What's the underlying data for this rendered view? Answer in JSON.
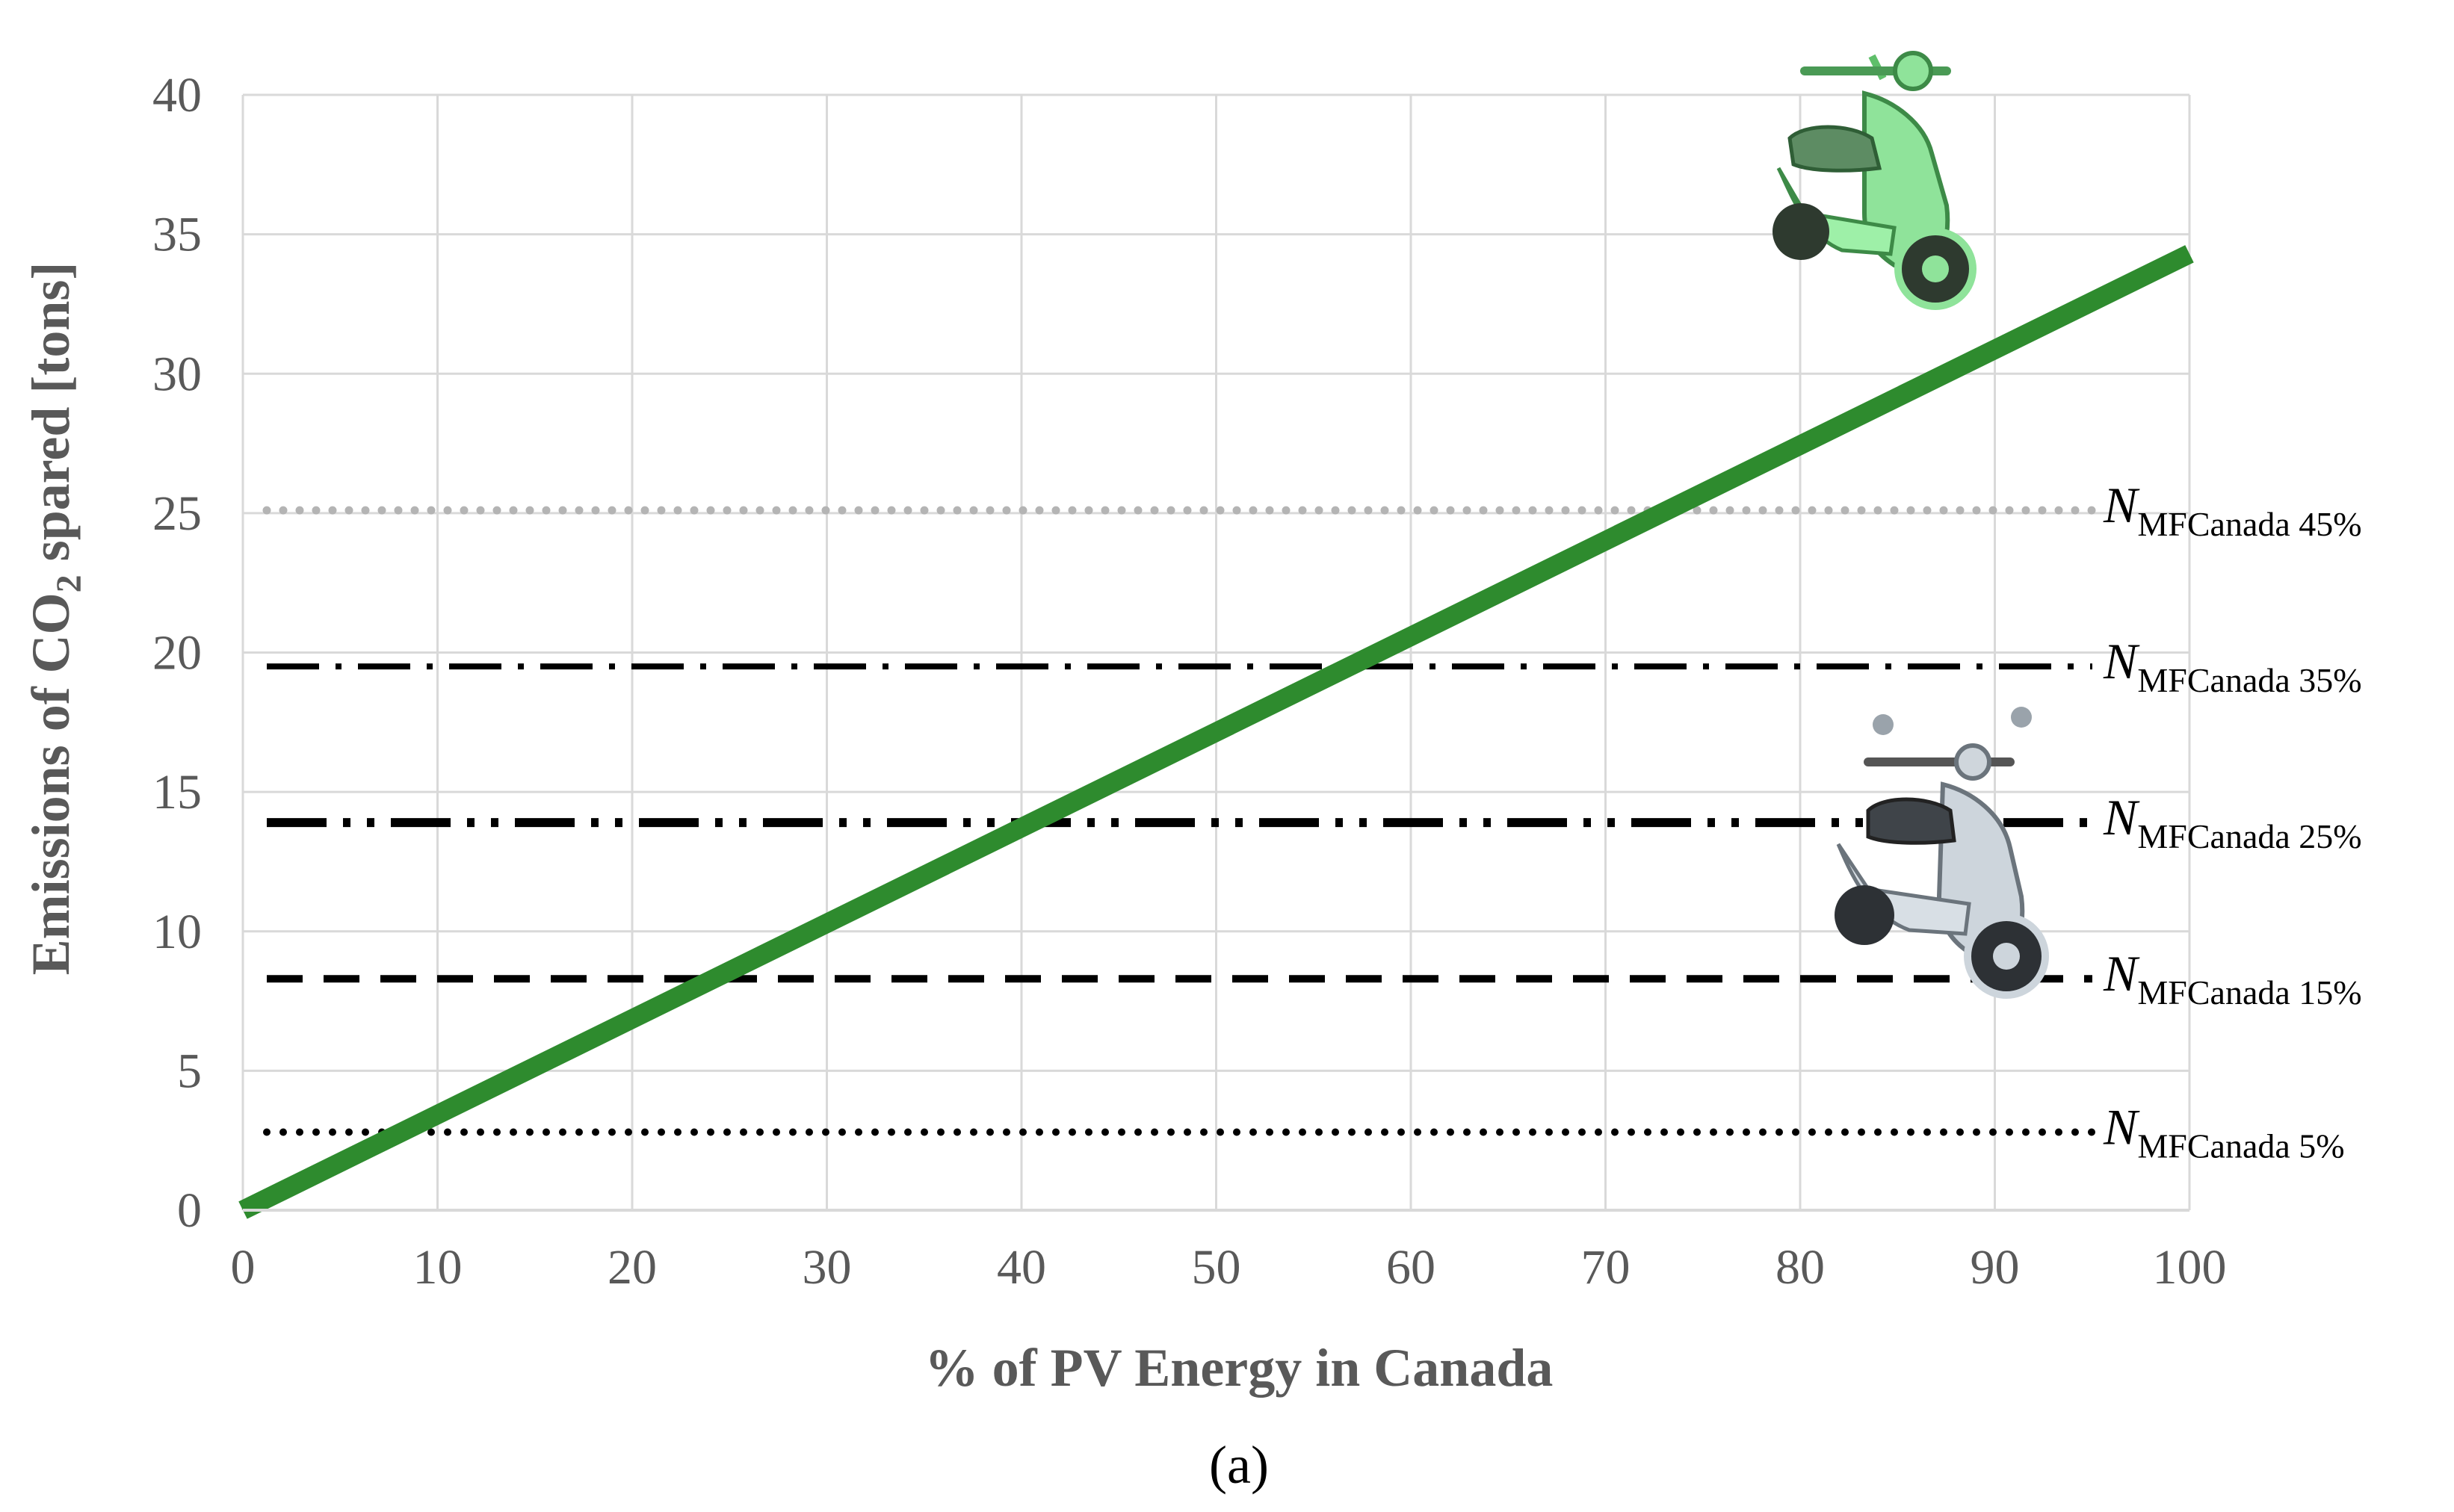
{
  "chart_data": {
    "type": "line",
    "title": "",
    "xlabel": "% of PV Energy in Canada",
    "ylabel": {
      "prefix": "Emissions of CO",
      "subscript": "2",
      "suffix": " spared [tons]"
    },
    "xlim": [
      0,
      100
    ],
    "ylim": [
      0,
      40
    ],
    "xticks": [
      0,
      10,
      20,
      30,
      40,
      50,
      60,
      70,
      80,
      90,
      100
    ],
    "yticks": [
      0,
      5,
      10,
      15,
      20,
      25,
      30,
      35,
      40
    ],
    "grid": true,
    "series": [
      {
        "name": "",
        "color": "#2e8b2e",
        "style": "solid",
        "x": [
          0,
          100
        ],
        "y": [
          0,
          34.3
        ]
      }
    ],
    "reference_lines": [
      {
        "label_main": "N",
        "label_sub": "MFCanada 45%",
        "y": 25.1,
        "style": "dotted-gray",
        "color": "#b4b4b4"
      },
      {
        "label_main": "N",
        "label_sub": "MFCanada 35%",
        "y": 19.5,
        "style": "long-dash-dot",
        "color": "#000000"
      },
      {
        "label_main": "N",
        "label_sub": "MFCanada 25%",
        "y": 13.9,
        "style": "long-dash-dot-dot",
        "color": "#000000"
      },
      {
        "label_main": "N",
        "label_sub": "MFCanada 15%",
        "y": 8.3,
        "style": "dashed",
        "color": "#000000"
      },
      {
        "label_main": "N",
        "label_sub": "MFCanada 5%",
        "y": 2.8,
        "style": "dotted",
        "color": "#000000"
      }
    ],
    "images": [
      {
        "icon": "green-scooter-icon"
      },
      {
        "icon": "gray-scooter-icon"
      }
    ]
  },
  "caption": "(a)"
}
